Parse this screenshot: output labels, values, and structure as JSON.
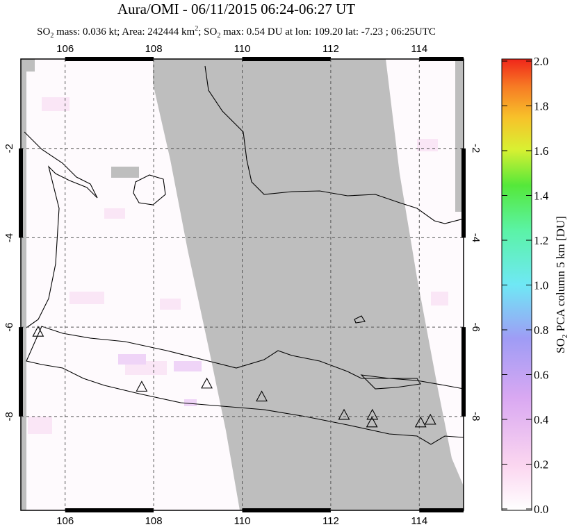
{
  "chart_data": {
    "type": "map",
    "title": "Aura/OMI - 06/11/2015 06:24-06:27 UT",
    "subtitle": [
      "SO",
      "2",
      " mass: 0.036 kt; Area: 242444 km",
      "2",
      "; SO",
      "2",
      " max: 0.54 DU at lon: 109.20 lat: -7.23 ; 06:25UTC"
    ],
    "xlim": [
      105,
      115
    ],
    "ylim": [
      -10.1,
      0
    ],
    "xticks": [
      106,
      108,
      110,
      112,
      114
    ],
    "yticks": [
      -2,
      -4,
      -6,
      -8
    ],
    "grid": true,
    "volcanoes": {
      "lon": [
        105.39,
        107.73,
        109.2,
        110.44,
        112.3,
        112.94,
        112.93,
        114.03,
        114.25
      ],
      "lat": [
        -6.11,
        -7.34,
        -7.27,
        -7.56,
        -7.97,
        -7.97,
        -8.14,
        -8.14,
        -8.08
      ]
    },
    "colorbar": {
      "label": [
        "SO",
        "2",
        " PCA column 5 km [DU]"
      ],
      "clim": [
        0,
        2
      ],
      "ticks": [
        {
          "value": 2,
          "label": "2.0"
        },
        {
          "value": 1.8,
          "label": "1.8"
        },
        {
          "value": 1.6,
          "label": "1.6"
        },
        {
          "value": 1.4,
          "label": "1.4"
        },
        {
          "value": 1.2,
          "label": "1.2"
        },
        {
          "value": 1,
          "label": "1.0"
        },
        {
          "value": 0.8,
          "label": "0.8"
        },
        {
          "value": 0.6,
          "label": "0.6"
        },
        {
          "value": 0.4,
          "label": "0.4"
        },
        {
          "value": 0.2,
          "label": "0.2"
        },
        {
          "value": 0,
          "label": "0.0"
        }
      ]
    }
  }
}
